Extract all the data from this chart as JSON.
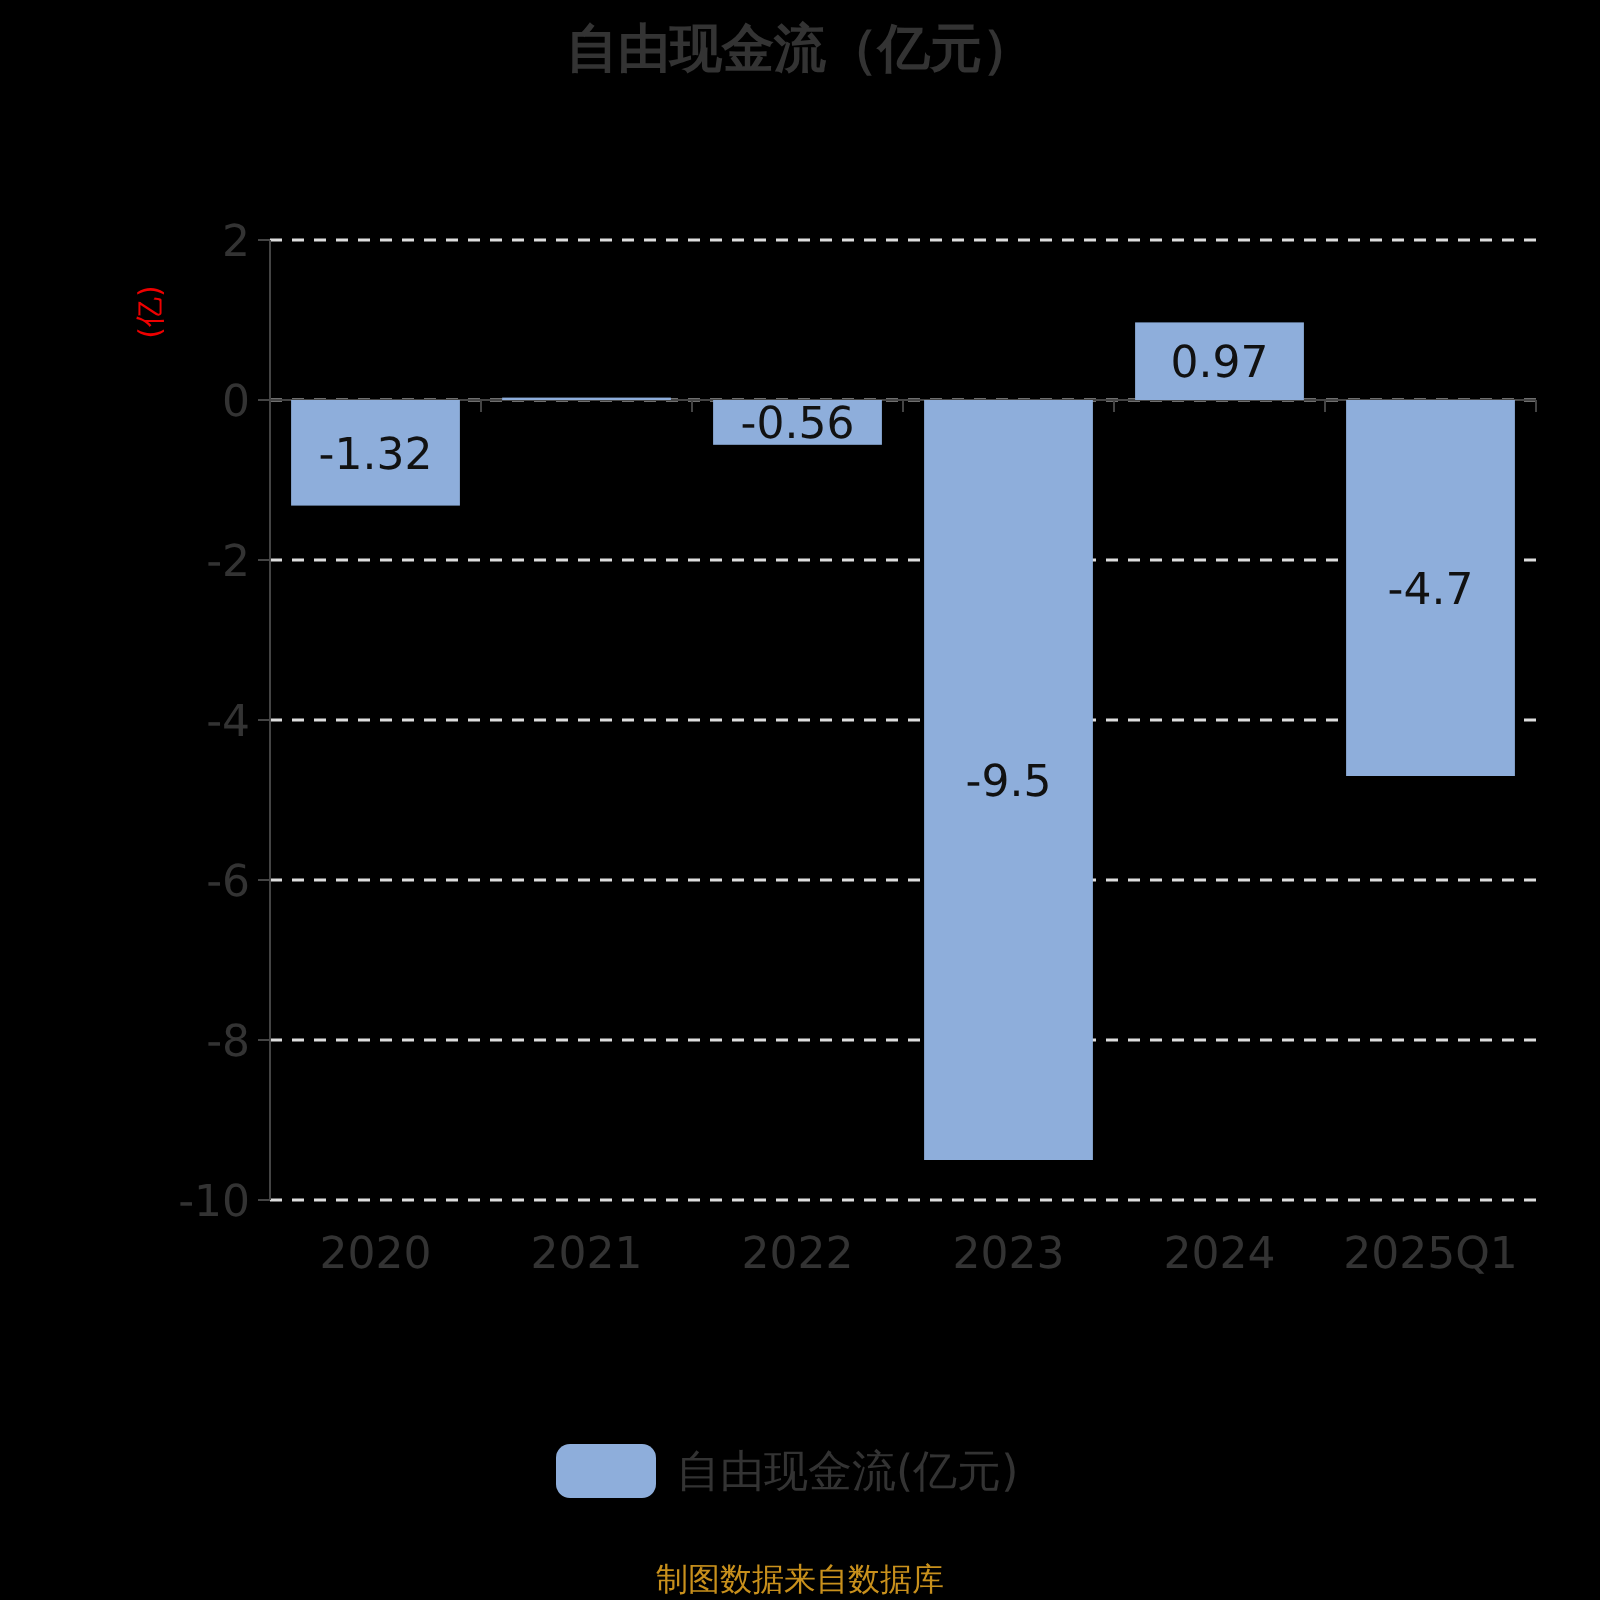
{
  "chart_data": {
    "type": "bar",
    "title": "自由现金流（亿元）",
    "ylabel": "(亿)",
    "categories": [
      "2020",
      "2021",
      "2022",
      "2023",
      "2024",
      "2025Q1"
    ],
    "series": [
      {
        "name": "自由现金流(亿元)",
        "color": "#8eaedb",
        "values": [
          -1.32,
          0.03,
          -0.56,
          -9.5,
          0.97,
          -4.7
        ]
      }
    ],
    "value_labels": [
      "-1.32",
      null,
      "-0.56",
      "-9.5",
      "0.97",
      "-4.7"
    ],
    "ylim": [
      -10,
      2
    ],
    "yticks": [
      -10,
      -8,
      -6,
      -4,
      -2,
      0,
      2
    ],
    "grid": "y",
    "legend": "bottom",
    "annotations": [
      "制图数据来自数据库"
    ]
  }
}
